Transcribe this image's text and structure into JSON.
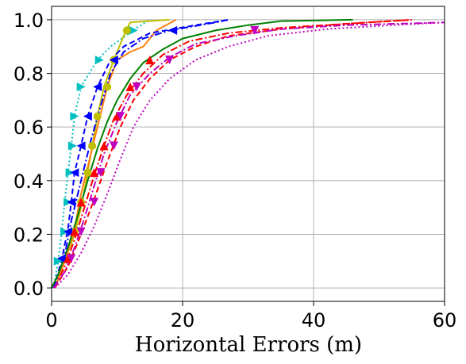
{
  "chart_data": {
    "type": "line",
    "title": "",
    "xlabel": "Horizontal Errors (m)",
    "ylabel": "",
    "xlim": [
      0,
      60
    ],
    "ylim": [
      -0.05,
      1.05
    ],
    "xticks": [
      0,
      20,
      40,
      60
    ],
    "yticks": [
      0.0,
      0.2,
      0.4,
      0.6,
      0.8,
      1.0
    ],
    "xtick_labels": [
      "0",
      "20",
      "40",
      "60"
    ],
    "ytick_labels": [
      "0.0",
      "0.2",
      "0.4",
      "0.6",
      "0.8",
      "1.0"
    ],
    "grid": true,
    "legend": "none",
    "series": [
      {
        "color": "#00bfbf",
        "dash": "dotted",
        "marker": "triangle-right",
        "points": [
          [
            0.3,
            0
          ],
          [
            1,
            0.1
          ],
          [
            1.5,
            0.2
          ],
          [
            2,
            0.32
          ],
          [
            2.5,
            0.43
          ],
          [
            3,
            0.53
          ],
          [
            3.5,
            0.64
          ],
          [
            4.5,
            0.75
          ],
          [
            7,
            0.85
          ],
          [
            9,
            0.9
          ],
          [
            13,
            0.97
          ],
          [
            15,
            1.0
          ]
        ],
        "marker_points": [
          [
            1,
            0.1
          ],
          [
            2,
            0.21
          ],
          [
            2.5,
            0.32
          ],
          [
            2.8,
            0.43
          ],
          [
            3.2,
            0.53
          ],
          [
            3.5,
            0.64
          ],
          [
            4.5,
            0.75
          ],
          [
            7.3,
            0.85
          ],
          [
            12.5,
            0.96
          ]
        ]
      },
      {
        "color": "#bfbf00",
        "dash": "solid",
        "marker": "circle",
        "points": [
          [
            0.5,
            0
          ],
          [
            2,
            0.1
          ],
          [
            3.5,
            0.2
          ],
          [
            4.5,
            0.3
          ],
          [
            5.5,
            0.43
          ],
          [
            6.2,
            0.53
          ],
          [
            7,
            0.64
          ],
          [
            8,
            0.75
          ],
          [
            9.5,
            0.85
          ],
          [
            11,
            0.94
          ],
          [
            12,
            0.99
          ],
          [
            18,
            1.0
          ]
        ],
        "marker_points": [
          [
            3.5,
            0.21
          ],
          [
            4.5,
            0.32
          ],
          [
            5.5,
            0.43
          ],
          [
            6.2,
            0.53
          ],
          [
            7,
            0.64
          ],
          [
            8.5,
            0.75
          ],
          [
            9.5,
            0.85
          ],
          [
            11.5,
            0.96
          ]
        ]
      },
      {
        "color": "#ff7f0e",
        "dash": "solid",
        "marker": "none",
        "points": [
          [
            0.5,
            0
          ],
          [
            2,
            0.1
          ],
          [
            3.5,
            0.22
          ],
          [
            4.5,
            0.35
          ],
          [
            5.5,
            0.45
          ],
          [
            6.5,
            0.55
          ],
          [
            7.5,
            0.65
          ],
          [
            8.5,
            0.75
          ],
          [
            10,
            0.85
          ],
          [
            12,
            0.88
          ],
          [
            14,
            0.9
          ],
          [
            16,
            0.96
          ],
          [
            19,
            1.0
          ]
        ],
        "marker_points": []
      },
      {
        "color": "#0000ff",
        "dash": "dashed",
        "marker": "triangle-left",
        "points": [
          [
            0.3,
            0
          ],
          [
            1.5,
            0.1
          ],
          [
            2.5,
            0.22
          ],
          [
            3,
            0.32
          ],
          [
            3.5,
            0.43
          ],
          [
            4.5,
            0.53
          ],
          [
            5.5,
            0.64
          ],
          [
            7,
            0.75
          ],
          [
            9,
            0.85
          ],
          [
            11,
            0.9
          ],
          [
            15,
            0.95
          ],
          [
            22,
            0.98
          ],
          [
            27,
            1.0
          ]
        ],
        "marker_points": [
          [
            1.5,
            0.11
          ],
          [
            2.5,
            0.21
          ],
          [
            3,
            0.32
          ],
          [
            3.5,
            0.43
          ],
          [
            4.5,
            0.53
          ],
          [
            5.5,
            0.64
          ],
          [
            7,
            0.75
          ],
          [
            9.5,
            0.85
          ],
          [
            18.5,
            0.96
          ]
        ]
      },
      {
        "color": "#0000ff",
        "dash": "dashdot",
        "marker": "none",
        "points": [
          [
            0.3,
            0
          ],
          [
            2,
            0.12
          ],
          [
            3,
            0.25
          ],
          [
            4.5,
            0.4
          ],
          [
            6,
            0.55
          ],
          [
            7.5,
            0.68
          ],
          [
            9,
            0.8
          ],
          [
            11,
            0.88
          ],
          [
            14,
            0.93
          ],
          [
            18,
            0.96
          ],
          [
            25,
            0.99
          ],
          [
            27,
            1.0
          ]
        ],
        "marker_points": []
      },
      {
        "color": "#008000",
        "dash": "solid",
        "marker": "none",
        "points": [
          [
            0,
            0
          ],
          [
            1,
            0.05
          ],
          [
            2.5,
            0.15
          ],
          [
            4,
            0.27
          ],
          [
            5.5,
            0.4
          ],
          [
            7,
            0.52
          ],
          [
            8.5,
            0.62
          ],
          [
            10,
            0.7
          ],
          [
            12,
            0.78
          ],
          [
            14,
            0.84
          ],
          [
            17,
            0.89
          ],
          [
            20,
            0.93
          ],
          [
            25,
            0.96
          ],
          [
            30,
            0.98
          ],
          [
            35,
            0.995
          ],
          [
            46,
            1.0
          ]
        ],
        "marker_points": []
      },
      {
        "color": "#ff0000",
        "dash": "dashdot",
        "marker": "triangle-up",
        "points": [
          [
            0.5,
            0
          ],
          [
            2,
            0.08
          ],
          [
            3.5,
            0.18
          ],
          [
            5,
            0.3
          ],
          [
            6.5,
            0.42
          ],
          [
            8,
            0.53
          ],
          [
            9.5,
            0.63
          ],
          [
            11.5,
            0.72
          ],
          [
            14,
            0.8
          ],
          [
            17,
            0.87
          ],
          [
            21,
            0.92
          ],
          [
            27,
            0.95
          ],
          [
            35,
            0.97
          ],
          [
            45,
            0.985
          ],
          [
            55,
            1.0
          ]
        ],
        "marker_points": [
          [
            2.5,
            0.11
          ],
          [
            3.5,
            0.21
          ],
          [
            4.5,
            0.32
          ],
          [
            6.5,
            0.43
          ],
          [
            8,
            0.53
          ],
          [
            10,
            0.64
          ],
          [
            12,
            0.75
          ],
          [
            15,
            0.85
          ]
        ]
      },
      {
        "color": "#ff0000",
        "dash": "dashed",
        "marker": "none",
        "points": [
          [
            0.5,
            0
          ],
          [
            2.5,
            0.08
          ],
          [
            4.5,
            0.2
          ],
          [
            6.5,
            0.33
          ],
          [
            8.5,
            0.47
          ],
          [
            10.5,
            0.6
          ],
          [
            12.5,
            0.7
          ],
          [
            15,
            0.78
          ],
          [
            18,
            0.85
          ],
          [
            22,
            0.9
          ],
          [
            27,
            0.94
          ],
          [
            35,
            0.965
          ],
          [
            45,
            0.985
          ],
          [
            55,
            1.0
          ]
        ],
        "marker_points": []
      },
      {
        "color": "#bf00bf",
        "dash": "dashdot",
        "marker": "triangle-down",
        "points": [
          [
            0.3,
            0
          ],
          [
            2,
            0.06
          ],
          [
            3.5,
            0.15
          ],
          [
            5,
            0.26
          ],
          [
            6.5,
            0.38
          ],
          [
            8,
            0.5
          ],
          [
            10,
            0.62
          ],
          [
            12,
            0.72
          ],
          [
            15,
            0.8
          ],
          [
            18,
            0.86
          ],
          [
            22,
            0.91
          ],
          [
            28,
            0.94
          ],
          [
            35,
            0.965
          ],
          [
            45,
            0.98
          ],
          [
            60,
            0.99
          ]
        ],
        "marker_points": [
          [
            3,
            0.11
          ],
          [
            4.5,
            0.21
          ],
          [
            6.5,
            0.32
          ],
          [
            7.5,
            0.43
          ],
          [
            9.5,
            0.53
          ],
          [
            10.5,
            0.64
          ],
          [
            13,
            0.75
          ],
          [
            18,
            0.85
          ],
          [
            31,
            0.96
          ]
        ]
      },
      {
        "color": "#bf00bf",
        "dash": "dotted",
        "marker": "none",
        "points": [
          [
            0.5,
            0
          ],
          [
            2.5,
            0.05
          ],
          [
            4.5,
            0.13
          ],
          [
            6.5,
            0.23
          ],
          [
            8.5,
            0.35
          ],
          [
            10.5,
            0.48
          ],
          [
            12.5,
            0.6
          ],
          [
            15,
            0.7
          ],
          [
            18,
            0.78
          ],
          [
            22,
            0.85
          ],
          [
            27,
            0.9
          ],
          [
            33,
            0.94
          ],
          [
            42,
            0.965
          ],
          [
            52,
            0.98
          ],
          [
            60,
            0.99
          ]
        ],
        "marker_points": []
      }
    ]
  }
}
